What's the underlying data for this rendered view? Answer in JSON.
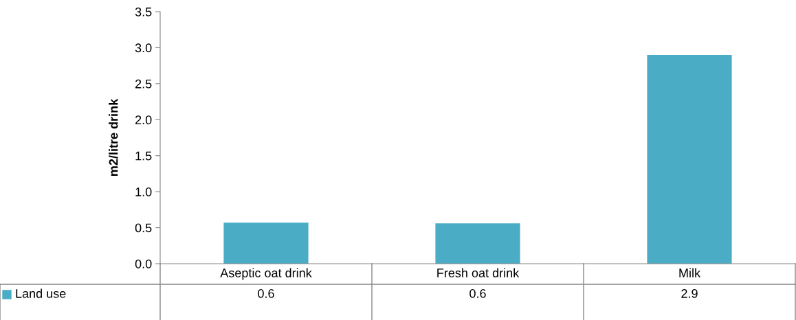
{
  "chart_data": {
    "type": "bar",
    "ylabel": "m2/litre drink",
    "categories": [
      "Aseptic oat drink",
      "Fresh oat drink",
      "Milk"
    ],
    "series": [
      {
        "name": "Land use",
        "color": "#4bacc6",
        "values": [
          0.57,
          0.56,
          2.9
        ],
        "value_labels": [
          "0.6",
          "0.6",
          "2.9"
        ]
      }
    ],
    "ylim": [
      0,
      3.5
    ],
    "yticks": [
      {
        "value": 0,
        "label": "0.0"
      },
      {
        "value": 0.5,
        "label": "0.5"
      },
      {
        "value": 1,
        "label": "1.0"
      },
      {
        "value": 1.5,
        "label": "1.5"
      },
      {
        "value": 2,
        "label": "2.0"
      },
      {
        "value": 2.5,
        "label": "2.5"
      },
      {
        "value": 3,
        "label": "3.0"
      },
      {
        "value": 3.5,
        "label": "3.5"
      }
    ],
    "grid": false
  }
}
